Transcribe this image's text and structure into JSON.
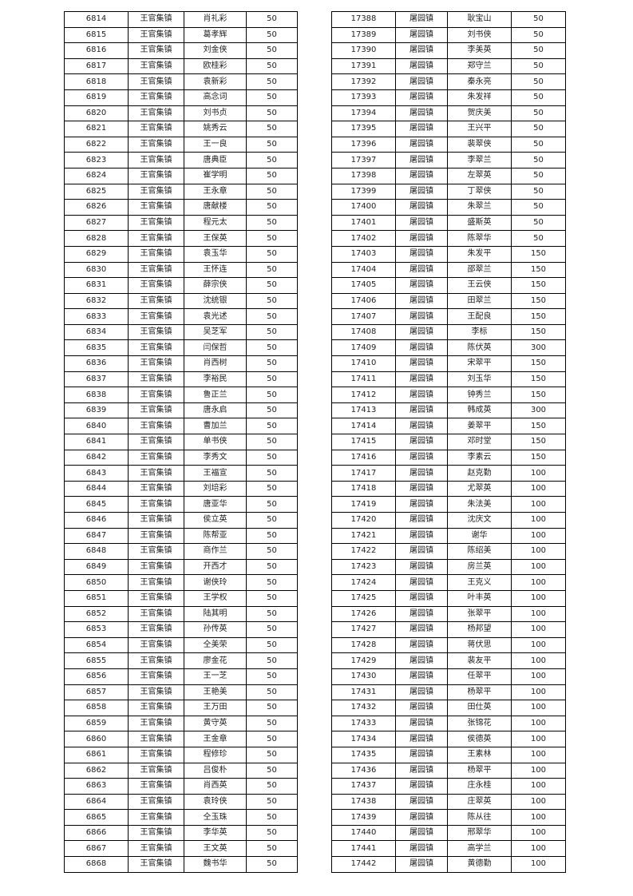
{
  "left_table": {
    "rows": [
      [
        "6814",
        "王官集镇",
        "肖礼彩",
        "50"
      ],
      [
        "6815",
        "王官集镇",
        "葛孝辉",
        "50"
      ],
      [
        "6816",
        "王官集镇",
        "刘金侠",
        "50"
      ],
      [
        "6817",
        "王官集镇",
        "欧桂彩",
        "50"
      ],
      [
        "6818",
        "王官集镇",
        "袁新彩",
        "50"
      ],
      [
        "6819",
        "王官集镇",
        "高念词",
        "50"
      ],
      [
        "6820",
        "王官集镇",
        "刘书贞",
        "50"
      ],
      [
        "6821",
        "王官集镇",
        "姚秀云",
        "50"
      ],
      [
        "6822",
        "王官集镇",
        "王一良",
        "50"
      ],
      [
        "6823",
        "王官集镇",
        "唐典臣",
        "50"
      ],
      [
        "6824",
        "王官集镇",
        "崔学明",
        "50"
      ],
      [
        "6825",
        "王官集镇",
        "王永章",
        "50"
      ],
      [
        "6826",
        "王官集镇",
        "唐献楼",
        "50"
      ],
      [
        "6827",
        "王官集镇",
        "程元太",
        "50"
      ],
      [
        "6828",
        "王官集镇",
        "王保英",
        "50"
      ],
      [
        "6829",
        "王官集镇",
        "袁玉华",
        "50"
      ],
      [
        "6830",
        "王官集镇",
        "王怀连",
        "50"
      ],
      [
        "6831",
        "王官集镇",
        "薛宗侠",
        "50"
      ],
      [
        "6832",
        "王官集镇",
        "沈统银",
        "50"
      ],
      [
        "6833",
        "王官集镇",
        "袁光述",
        "50"
      ],
      [
        "6834",
        "王官集镇",
        "吴芝军",
        "50"
      ],
      [
        "6835",
        "王官集镇",
        "闫保哲",
        "50"
      ],
      [
        "6836",
        "王官集镇",
        "肖西树",
        "50"
      ],
      [
        "6837",
        "王官集镇",
        "李裕民",
        "50"
      ],
      [
        "6838",
        "王官集镇",
        "鲁正兰",
        "50"
      ],
      [
        "6839",
        "王官集镇",
        "唐永启",
        "50"
      ],
      [
        "6840",
        "王官集镇",
        "曹加兰",
        "50"
      ],
      [
        "6841",
        "王官集镇",
        "单书侠",
        "50"
      ],
      [
        "6842",
        "王官集镇",
        "李秀文",
        "50"
      ],
      [
        "6843",
        "王官集镇",
        "王福宣",
        "50"
      ],
      [
        "6844",
        "王官集镇",
        "刘培彩",
        "50"
      ],
      [
        "6845",
        "王官集镇",
        "唐亚华",
        "50"
      ],
      [
        "6846",
        "王官集镇",
        "侯立英",
        "50"
      ],
      [
        "6847",
        "王官集镇",
        "陈帮亚",
        "50"
      ],
      [
        "6848",
        "王官集镇",
        "商作兰",
        "50"
      ],
      [
        "6849",
        "王官集镇",
        "开西才",
        "50"
      ],
      [
        "6850",
        "王官集镇",
        "谢侠玲",
        "50"
      ],
      [
        "6851",
        "王官集镇",
        "王学权",
        "50"
      ],
      [
        "6852",
        "王官集镇",
        "陆其明",
        "50"
      ],
      [
        "6853",
        "王官集镇",
        "孙传英",
        "50"
      ],
      [
        "6854",
        "王官集镇",
        "仝美荣",
        "50"
      ],
      [
        "6855",
        "王官集镇",
        "廖金花",
        "50"
      ],
      [
        "6856",
        "王官集镇",
        "王一芝",
        "50"
      ],
      [
        "6857",
        "王官集镇",
        "王艳美",
        "50"
      ],
      [
        "6858",
        "王官集镇",
        "王万田",
        "50"
      ],
      [
        "6859",
        "王官集镇",
        "黄守英",
        "50"
      ],
      [
        "6860",
        "王官集镇",
        "王金章",
        "50"
      ],
      [
        "6861",
        "王官集镇",
        "程修珍",
        "50"
      ],
      [
        "6862",
        "王官集镇",
        "吕俊朴",
        "50"
      ],
      [
        "6863",
        "王官集镇",
        "肖西英",
        "50"
      ],
      [
        "6864",
        "王官集镇",
        "袁玲侠",
        "50"
      ],
      [
        "6865",
        "王官集镇",
        "仝玉珠",
        "50"
      ],
      [
        "6866",
        "王官集镇",
        "李华英",
        "50"
      ],
      [
        "6867",
        "王官集镇",
        "王文英",
        "50"
      ],
      [
        "6868",
        "王官集镇",
        "魏书华",
        "50"
      ]
    ]
  },
  "right_table": {
    "rows": [
      [
        "17388",
        "屠园镇",
        "耿宝山",
        "50"
      ],
      [
        "17389",
        "屠园镇",
        "刘书侠",
        "50"
      ],
      [
        "17390",
        "屠园镇",
        "李美英",
        "50"
      ],
      [
        "17391",
        "屠园镇",
        "郑守兰",
        "50"
      ],
      [
        "17392",
        "屠园镇",
        "秦永亮",
        "50"
      ],
      [
        "17393",
        "屠园镇",
        "朱发祥",
        "50"
      ],
      [
        "17394",
        "屠园镇",
        "贺庆美",
        "50"
      ],
      [
        "17395",
        "屠园镇",
        "王兴平",
        "50"
      ],
      [
        "17396",
        "屠园镇",
        "裴翠侠",
        "50"
      ],
      [
        "17397",
        "屠园镇",
        "李翠兰",
        "50"
      ],
      [
        "17398",
        "屠园镇",
        "左翠英",
        "50"
      ],
      [
        "17399",
        "屠园镇",
        "丁翠侠",
        "50"
      ],
      [
        "17400",
        "屠园镇",
        "朱翠兰",
        "50"
      ],
      [
        "17401",
        "屠园镇",
        "盛斯英",
        "50"
      ],
      [
        "17402",
        "屠园镇",
        "陈翠华",
        "50"
      ],
      [
        "17403",
        "屠园镇",
        "朱发平",
        "150"
      ],
      [
        "17404",
        "屠园镇",
        "邵翠兰",
        "150"
      ],
      [
        "17405",
        "屠园镇",
        "王云侠",
        "150"
      ],
      [
        "17406",
        "屠园镇",
        "田翠兰",
        "150"
      ],
      [
        "17407",
        "屠园镇",
        "王配良",
        "150"
      ],
      [
        "17408",
        "屠园镇",
        "李标",
        "150"
      ],
      [
        "17409",
        "屠园镇",
        "陈伏英",
        "300"
      ],
      [
        "17410",
        "屠园镇",
        "宋翠平",
        "150"
      ],
      [
        "17411",
        "屠园镇",
        "刘玉华",
        "150"
      ],
      [
        "17412",
        "屠园镇",
        "钟秀兰",
        "150"
      ],
      [
        "17413",
        "屠园镇",
        "韩成英",
        "300"
      ],
      [
        "17414",
        "屠园镇",
        "姜翠平",
        "150"
      ],
      [
        "17415",
        "屠园镇",
        "邓时堂",
        "150"
      ],
      [
        "17416",
        "屠园镇",
        "李素云",
        "150"
      ],
      [
        "17417",
        "屠园镇",
        "赵克勤",
        "100"
      ],
      [
        "17418",
        "屠园镇",
        "尤翠英",
        "100"
      ],
      [
        "17419",
        "屠园镇",
        "朱法美",
        "100"
      ],
      [
        "17420",
        "屠园镇",
        "沈庆文",
        "100"
      ],
      [
        "17421",
        "屠园镇",
        "谢华",
        "100"
      ],
      [
        "17422",
        "屠园镇",
        "陈绍美",
        "100"
      ],
      [
        "17423",
        "屠园镇",
        "房兰英",
        "100"
      ],
      [
        "17424",
        "屠园镇",
        "王克义",
        "100"
      ],
      [
        "17425",
        "屠园镇",
        "叶丰英",
        "100"
      ],
      [
        "17426",
        "屠园镇",
        "张翠平",
        "100"
      ],
      [
        "17427",
        "屠园镇",
        "杨邦望",
        "100"
      ],
      [
        "17428",
        "屠园镇",
        "蒋伏思",
        "100"
      ],
      [
        "17429",
        "屠园镇",
        "裴友平",
        "100"
      ],
      [
        "17430",
        "屠园镇",
        "任翠平",
        "100"
      ],
      [
        "17431",
        "屠园镇",
        "杨翠平",
        "100"
      ],
      [
        "17432",
        "屠园镇",
        "田仕英",
        "100"
      ],
      [
        "17433",
        "屠园镇",
        "张锦花",
        "100"
      ],
      [
        "17434",
        "屠园镇",
        "侯德英",
        "100"
      ],
      [
        "17435",
        "屠园镇",
        "王素林",
        "100"
      ],
      [
        "17436",
        "屠园镇",
        "杨翠平",
        "100"
      ],
      [
        "17437",
        "屠园镇",
        "庄永桂",
        "100"
      ],
      [
        "17438",
        "屠园镇",
        "庄翠英",
        "100"
      ],
      [
        "17439",
        "屠园镇",
        "陈从往",
        "100"
      ],
      [
        "17440",
        "屠园镇",
        "邢翠华",
        "100"
      ],
      [
        "17441",
        "屠园镇",
        "高学兰",
        "100"
      ],
      [
        "17442",
        "屠园镇",
        "黄德勤",
        "100"
      ]
    ]
  }
}
